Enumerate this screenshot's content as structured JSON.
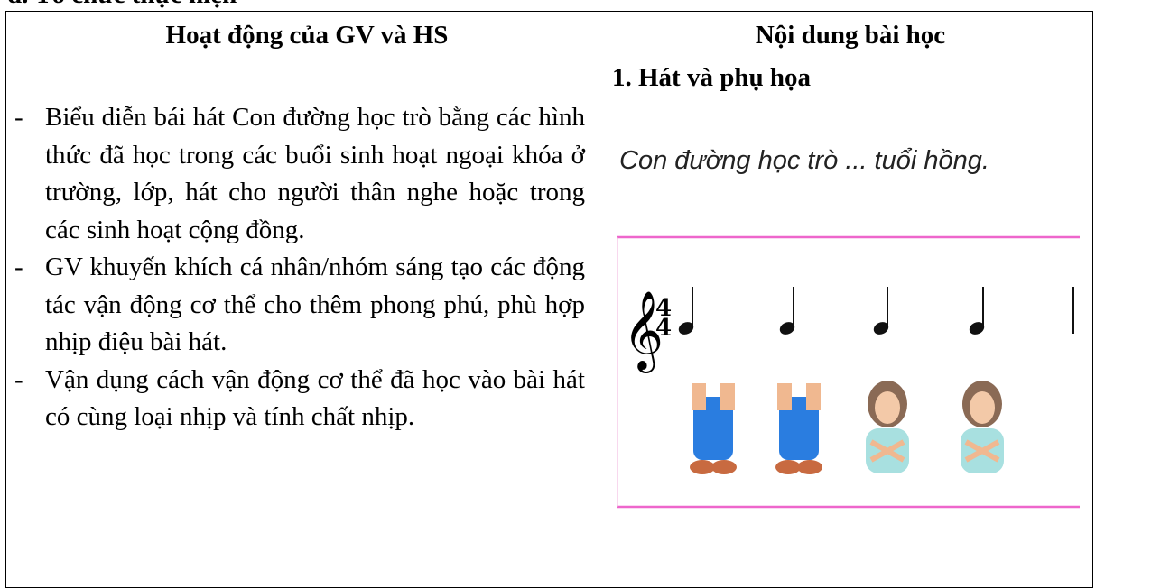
{
  "heading": "d. Tổ chức thực hiện",
  "table": {
    "headers": [
      "Hoạt động của GV và HS",
      "Nội dung bài học"
    ],
    "left_items": [
      "Biểu diễn bái hát Con đường học trò bằng các hình thức đã học trong các buổi sinh hoạt ngoại khóa ở trường, lớp, hát cho người thân nghe hoặc trong các sinh hoạt cộng đồng.",
      "GV khuyến khích cá nhân/nhóm sáng tạo các động tác vận động cơ thể cho thêm phong phú, phù hợp nhịp điệu bài hát.",
      "Vận dụng cách vận động cơ thể đã học vào bài hát có cùng loại nhịp và tính chất nhịp."
    ],
    "right_title": "1. Hát và phụ họa",
    "figure_caption": "Con đường học trò ... tuổi hồng.",
    "time_signature": [
      "4",
      "4"
    ]
  }
}
